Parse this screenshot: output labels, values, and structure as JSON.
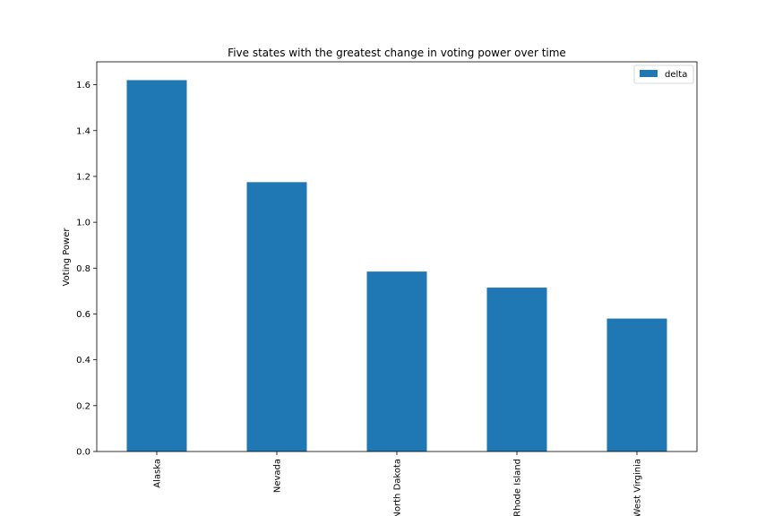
{
  "chart_data": {
    "type": "bar",
    "title": "Five states with the greatest change in voting power over time",
    "xlabel": "",
    "ylabel": "Voting Power",
    "categories": [
      "Alaska",
      "Nevada",
      "North Dakota",
      "Rhode Island",
      "West Virginia"
    ],
    "series": [
      {
        "name": "delta",
        "values": [
          1.62,
          1.175,
          0.785,
          0.715,
          0.58
        ]
      }
    ],
    "ylim": [
      0,
      1.7
    ],
    "yticks": [
      "0.0",
      "0.2",
      "0.4",
      "0.6",
      "0.8",
      "1.0",
      "1.2",
      "1.4",
      "1.6"
    ],
    "grid": false,
    "legend_position": "top-right",
    "colors": {
      "bar": "#1f77b4"
    }
  }
}
